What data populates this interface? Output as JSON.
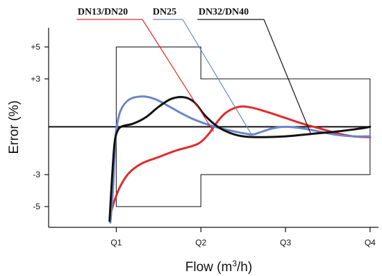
{
  "chart_data": {
    "type": "line",
    "xlabel_main": "Flow (m",
    "xlabel_sup": "3",
    "xlabel_end": "/h)",
    "ylabel": "Error (%)",
    "x_ticks": [
      "Q1",
      "Q2",
      "Q3",
      "Q4"
    ],
    "y_ticks": [
      "+5",
      "+3",
      "-3",
      "-5"
    ],
    "x_tick_values": [
      1,
      2,
      3,
      4
    ],
    "y_tick_values": [
      5,
      3,
      -3,
      -5
    ],
    "xlim": [
      0.2,
      4.1
    ],
    "ylim": [
      -6.3,
      6.2
    ],
    "grid": false,
    "zero_line": true,
    "error_envelope": {
      "points": [
        [
          1,
          -5
        ],
        [
          1,
          5
        ],
        [
          2,
          5
        ],
        [
          2,
          3
        ],
        [
          4,
          3
        ],
        [
          4,
          -3
        ],
        [
          2,
          -3
        ],
        [
          2,
          -5
        ],
        [
          1,
          -5
        ]
      ],
      "color": "#222222"
    },
    "series": [
      {
        "name": "DN13/DN20",
        "color": "#e02a2a",
        "points": [
          [
            0.93,
            -5.5
          ],
          [
            0.98,
            -4.6
          ],
          [
            1.05,
            -3.7
          ],
          [
            1.15,
            -2.9
          ],
          [
            1.3,
            -2.3
          ],
          [
            1.5,
            -1.9
          ],
          [
            1.7,
            -1.5
          ],
          [
            1.9,
            -1.2
          ],
          [
            2.0,
            -0.95
          ],
          [
            2.1,
            -0.4
          ],
          [
            2.2,
            0.35
          ],
          [
            2.3,
            0.9
          ],
          [
            2.45,
            1.25
          ],
          [
            2.6,
            1.2
          ],
          [
            2.8,
            0.9
          ],
          [
            3.0,
            0.55
          ],
          [
            3.2,
            0.2
          ],
          [
            3.4,
            -0.1
          ],
          [
            3.6,
            -0.4
          ],
          [
            3.8,
            -0.6
          ],
          [
            4.0,
            -0.65
          ]
        ]
      },
      {
        "name": "DN25",
        "color": "#6a86c8",
        "points": [
          [
            0.93,
            -6.0
          ],
          [
            0.96,
            -4.0
          ],
          [
            0.98,
            -1.8
          ],
          [
            1.0,
            -0.2
          ],
          [
            1.05,
            1.0
          ],
          [
            1.15,
            1.7
          ],
          [
            1.3,
            1.9
          ],
          [
            1.45,
            1.75
          ],
          [
            1.6,
            1.35
          ],
          [
            1.75,
            0.9
          ],
          [
            1.9,
            0.5
          ],
          [
            2.05,
            0.2
          ],
          [
            2.2,
            -0.05
          ],
          [
            2.4,
            -0.3
          ],
          [
            2.55,
            -0.45
          ],
          [
            2.62,
            -0.48
          ],
          [
            2.7,
            -0.35
          ],
          [
            2.85,
            -0.1
          ],
          [
            3.0,
            0.0
          ],
          [
            3.2,
            -0.1
          ],
          [
            3.4,
            -0.3
          ],
          [
            3.6,
            -0.5
          ],
          [
            3.8,
            -0.6
          ],
          [
            4.0,
            -0.6
          ]
        ]
      },
      {
        "name": "DN32/DN40",
        "color": "#111111",
        "points": [
          [
            0.92,
            -5.9
          ],
          [
            0.95,
            -3.2
          ],
          [
            0.98,
            -1.0
          ],
          [
            1.02,
            -0.2
          ],
          [
            1.08,
            0.05
          ],
          [
            1.2,
            0.2
          ],
          [
            1.35,
            0.6
          ],
          [
            1.5,
            1.25
          ],
          [
            1.65,
            1.75
          ],
          [
            1.8,
            1.85
          ],
          [
            1.92,
            1.55
          ],
          [
            2.05,
            0.7
          ],
          [
            2.2,
            0.0
          ],
          [
            2.35,
            -0.4
          ],
          [
            2.5,
            -0.6
          ],
          [
            2.7,
            -0.65
          ],
          [
            3.0,
            -0.6
          ],
          [
            3.3,
            -0.45
          ],
          [
            3.6,
            -0.3
          ],
          [
            3.9,
            -0.1
          ],
          [
            4.0,
            0.0
          ]
        ]
      }
    ],
    "legend": [
      {
        "name": "DN13/DN20",
        "color": "#e02a2a",
        "anchor": [
          2.15,
          -0.3
        ]
      },
      {
        "name": "DN25",
        "color": "#6a86c8",
        "anchor": [
          2.6,
          -0.5
        ]
      },
      {
        "name": "DN32/DN40",
        "color": "#111111",
        "anchor": [
          3.3,
          -0.45
        ]
      }
    ],
    "legend_position": "top"
  }
}
